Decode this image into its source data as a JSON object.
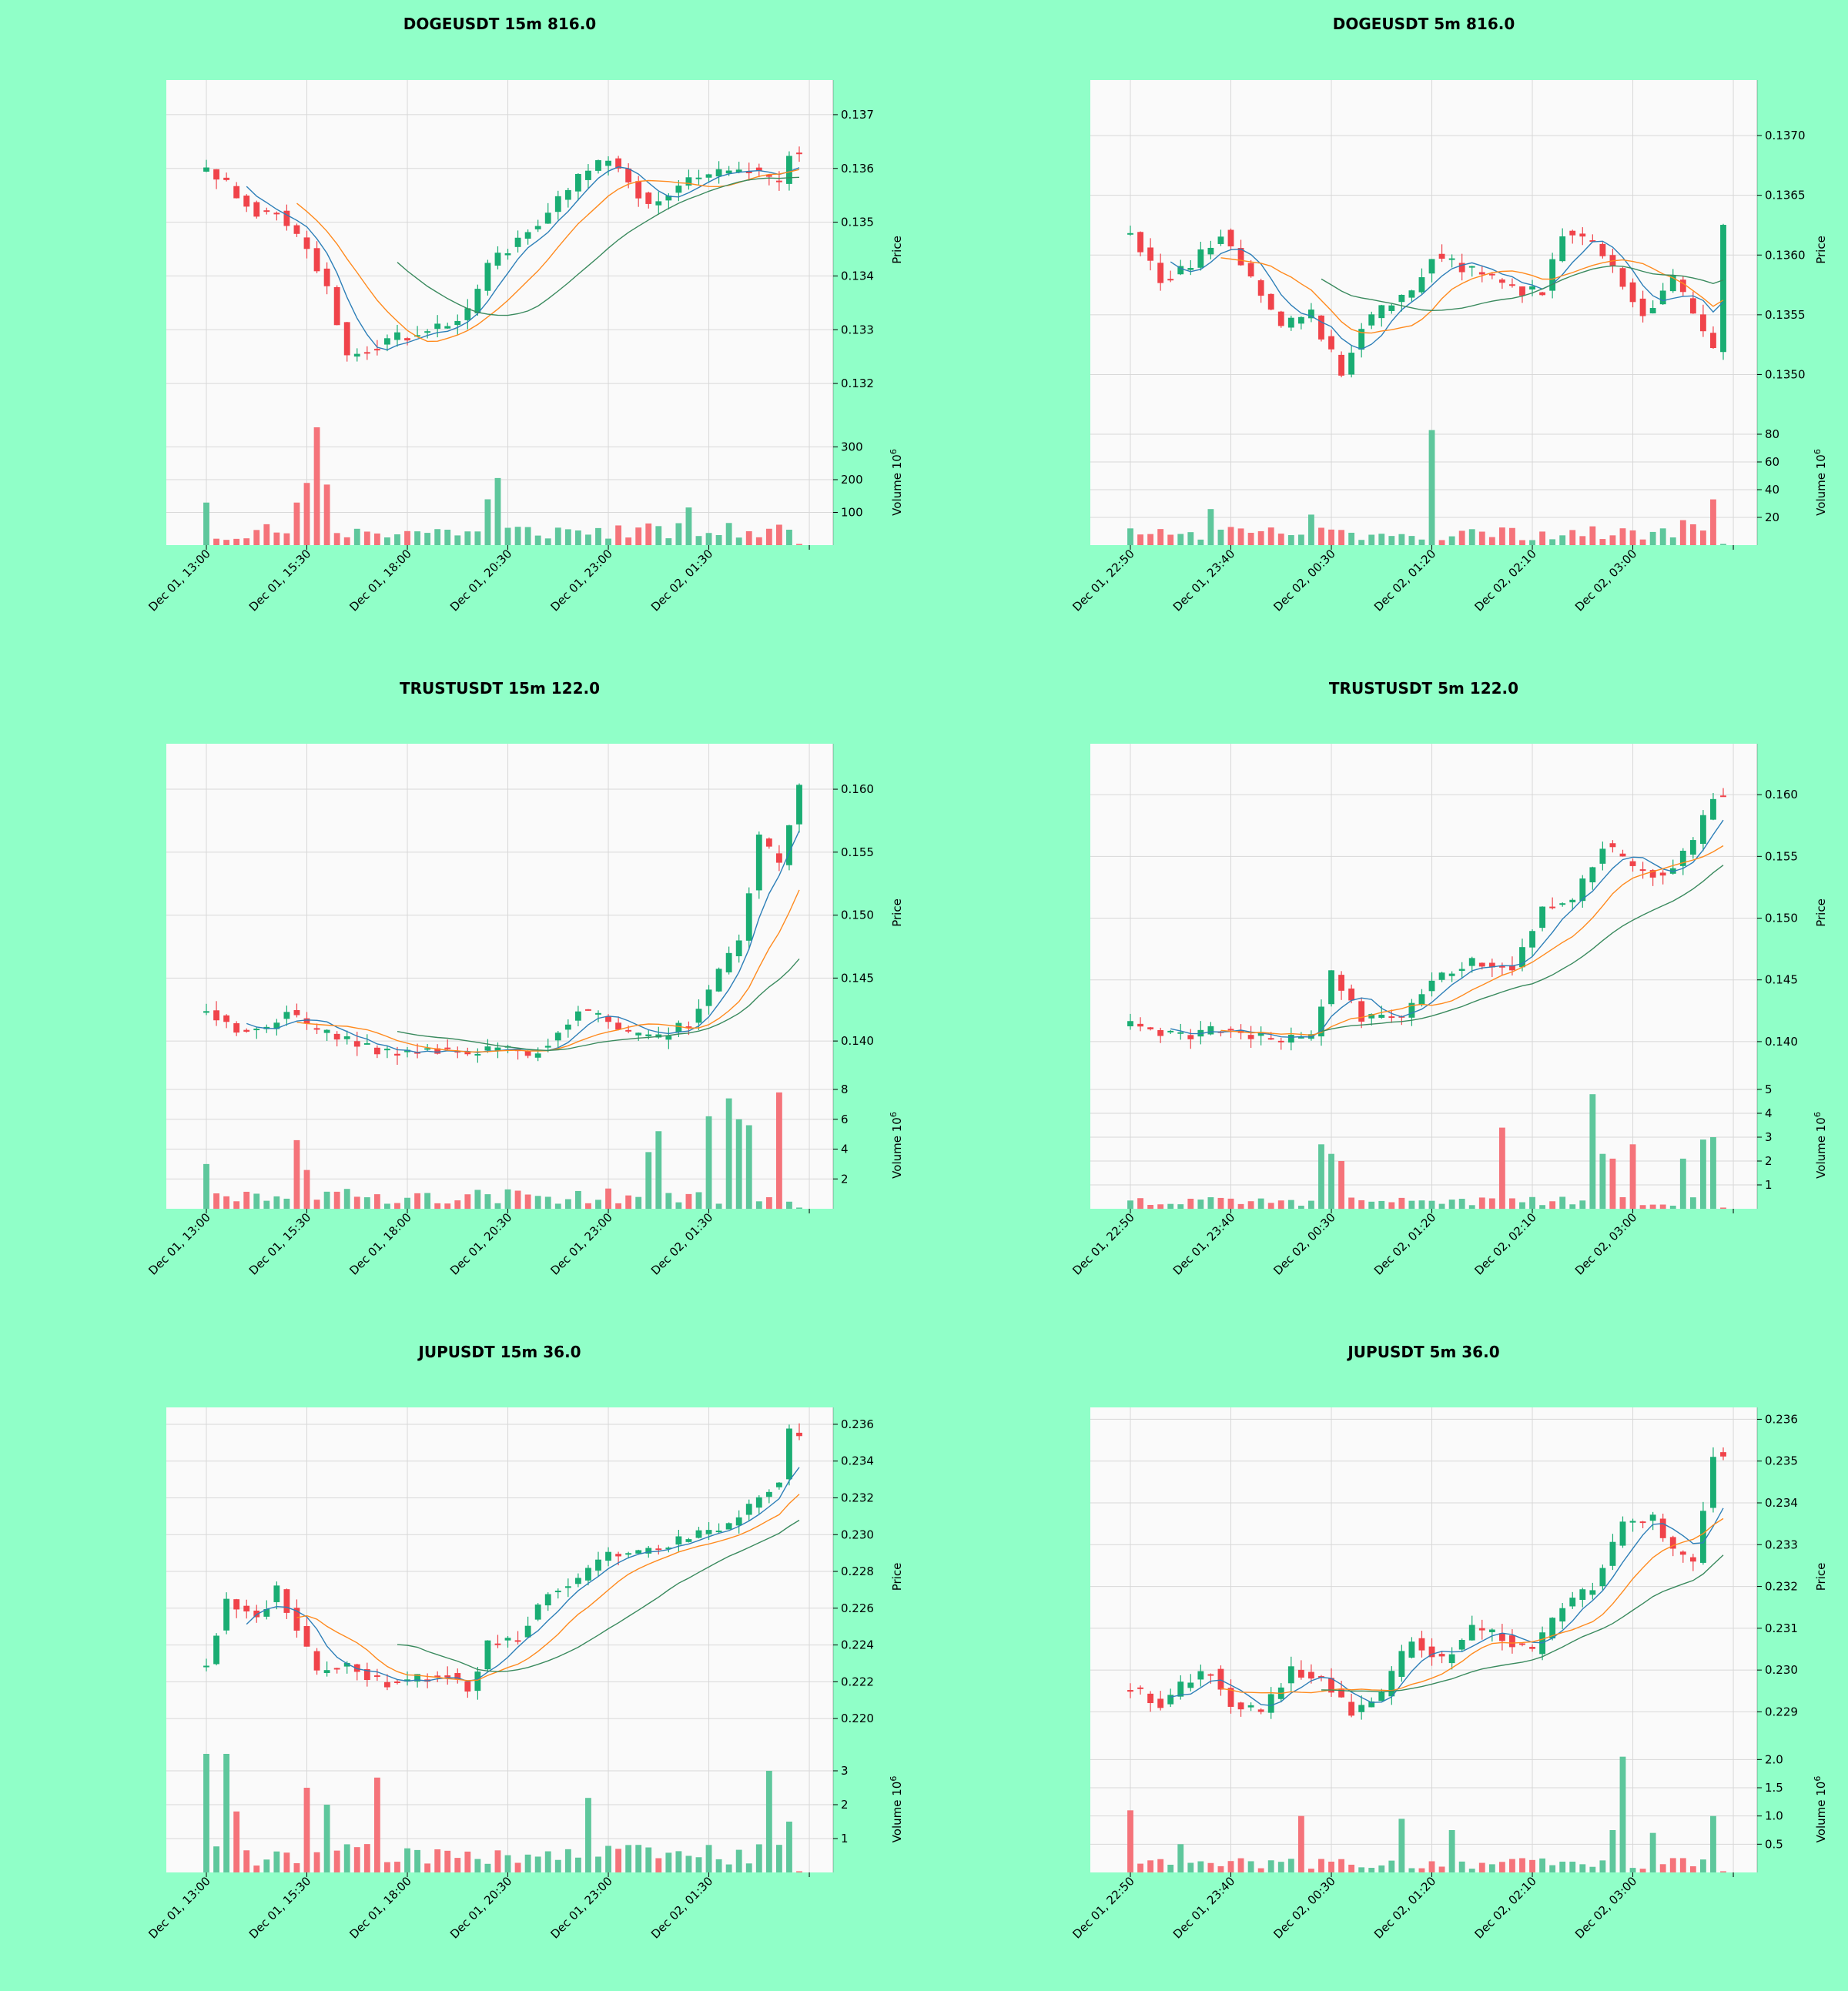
{
  "colors": {
    "background": "#90ffc8",
    "plot_bg": "#fafafa",
    "grid": "#d8d8d8",
    "up": "#1aad73",
    "down": "#f0434a",
    "ma_short": "#2d7fb8",
    "ma_mid": "#ff8a1e",
    "ma_long": "#3a8a5e",
    "volume_up": "#5ec79c",
    "volume_down": "#f5737a"
  },
  "chart_data": [
    {
      "type": "candlestick",
      "title": "DOGEUSDT 15m 816.0",
      "price_axis_label": "Price",
      "volume_axis_label": "Volume  10",
      "volume_exponent": "6",
      "x_tick_labels": [
        "Dec 01, 13:00",
        "Dec 01, 15:30",
        "Dec 01, 18:00",
        "Dec 01, 20:30",
        "Dec 01, 23:00",
        "Dec 02, 01:30"
      ],
      "price_ticks": [
        "0.132",
        "0.133",
        "0.134",
        "0.135",
        "0.136",
        "0.137"
      ],
      "volume_ticks": [
        "100",
        "200",
        "300"
      ],
      "price_range": [
        0.1315,
        0.1375
      ],
      "volume_range": [
        0,
        360
      ],
      "bars": 60,
      "anchors": [
        [
          0,
          0.136
        ],
        [
          5,
          0.1352
        ],
        [
          7,
          0.1352
        ],
        [
          10,
          0.1345
        ],
        [
          12,
          0.1338
        ],
        [
          14,
          0.1325
        ],
        [
          18,
          0.1328
        ],
        [
          20,
          0.1329
        ],
        [
          24,
          0.1331
        ],
        [
          26,
          0.1333
        ],
        [
          28,
          0.1342
        ],
        [
          33,
          0.135
        ],
        [
          37,
          0.1358
        ],
        [
          40,
          0.1362
        ],
        [
          44,
          0.1353
        ],
        [
          48,
          0.1358
        ],
        [
          54,
          0.136
        ],
        [
          57,
          0.1357
        ],
        [
          58,
          0.1363
        ],
        [
          59,
          0.1363
        ]
      ],
      "volume_base": 40,
      "volume_spikes": [
        [
          0,
          130
        ],
        [
          9,
          130
        ],
        [
          10,
          190
        ],
        [
          11,
          360
        ],
        [
          12,
          185
        ],
        [
          29,
          205
        ],
        [
          28,
          140
        ],
        [
          48,
          115
        ]
      ],
      "seed": 11
    },
    {
      "type": "candlestick",
      "title": "DOGEUSDT 5m 816.0",
      "price_axis_label": "Price",
      "volume_axis_label": "Volume  10",
      "volume_exponent": "6",
      "x_tick_labels": [
        "Dec 01, 22:50",
        "Dec 01, 23:40",
        "Dec 02, 00:30",
        "Dec 02, 01:20",
        "Dec 02, 02:10",
        "Dec 02, 03:00"
      ],
      "price_ticks": [
        "0.1350",
        "0.1355",
        "0.1360",
        "0.1365",
        "0.1370"
      ],
      "volume_ticks": [
        "20",
        "40",
        "60",
        "80"
      ],
      "price_range": [
        0.1347,
        0.1374
      ],
      "volume_range": [
        0,
        85
      ],
      "bars": 60,
      "anchors": [
        [
          0,
          0.1362
        ],
        [
          3,
          0.1358
        ],
        [
          6,
          0.1359
        ],
        [
          9,
          0.1362
        ],
        [
          12,
          0.1358
        ],
        [
          15,
          0.1354
        ],
        [
          18,
          0.1355
        ],
        [
          21,
          0.135
        ],
        [
          23,
          0.1354
        ],
        [
          26,
          0.1356
        ],
        [
          28,
          0.1357
        ],
        [
          30,
          0.136
        ],
        [
          33,
          0.1359
        ],
        [
          36,
          0.1358
        ],
        [
          39,
          0.1357
        ],
        [
          41,
          0.1357
        ],
        [
          43,
          0.1362
        ],
        [
          46,
          0.1361
        ],
        [
          48,
          0.1359
        ],
        [
          51,
          0.1355
        ],
        [
          54,
          0.1358
        ],
        [
          56,
          0.1355
        ],
        [
          58,
          0.1352
        ],
        [
          59,
          0.1363
        ]
      ],
      "volume_base": 8,
      "volume_spikes": [
        [
          8,
          26
        ],
        [
          18,
          22
        ],
        [
          30,
          83
        ],
        [
          55,
          18
        ],
        [
          58,
          33
        ],
        [
          56,
          15
        ]
      ],
      "seed": 23
    },
    {
      "type": "candlestick",
      "title": "TRUSTUSDT 15m 122.0",
      "price_axis_label": "Price",
      "volume_axis_label": "Volume  10",
      "volume_exponent": "6",
      "x_tick_labels": [
        "Dec 01, 13:00",
        "Dec 01, 15:30",
        "Dec 01, 18:00",
        "Dec 01, 20:30",
        "Dec 01, 23:00",
        "Dec 02, 01:30"
      ],
      "price_ticks": [
        "0.140",
        "0.145",
        "0.150",
        "0.155",
        "0.160"
      ],
      "volume_ticks": [
        "2",
        "4",
        "6",
        "8"
      ],
      "price_range": [
        0.1375,
        0.163
      ],
      "volume_range": [
        0,
        8
      ],
      "bars": 60,
      "anchors": [
        [
          0,
          0.1425
        ],
        [
          3,
          0.141
        ],
        [
          6,
          0.141
        ],
        [
          8,
          0.1425
        ],
        [
          10,
          0.141
        ],
        [
          14,
          0.14
        ],
        [
          18,
          0.139
        ],
        [
          22,
          0.1395
        ],
        [
          26,
          0.139
        ],
        [
          30,
          0.1395
        ],
        [
          32,
          0.1388
        ],
        [
          34,
          0.14
        ],
        [
          37,
          0.1425
        ],
        [
          40,
          0.1415
        ],
        [
          42,
          0.1405
        ],
        [
          45,
          0.1402
        ],
        [
          48,
          0.1415
        ],
        [
          50,
          0.144
        ],
        [
          53,
          0.148
        ],
        [
          55,
          0.156
        ],
        [
          57,
          0.154
        ],
        [
          59,
          0.1605
        ]
      ],
      "volume_base": 0.8,
      "volume_spikes": [
        [
          0,
          3.0
        ],
        [
          9,
          4.6
        ],
        [
          10,
          2.6
        ],
        [
          44,
          3.8
        ],
        [
          45,
          5.2
        ],
        [
          50,
          6.2
        ],
        [
          52,
          7.4
        ],
        [
          53,
          6.0
        ],
        [
          54,
          5.6
        ],
        [
          57,
          7.8
        ]
      ],
      "seed": 37
    },
    {
      "type": "candlestick",
      "title": "TRUSTUSDT 5m 122.0",
      "price_axis_label": "Price",
      "volume_axis_label": "Volume  10",
      "volume_exponent": "6",
      "x_tick_labels": [
        "Dec 01, 22:50",
        "Dec 01, 23:40",
        "Dec 02, 00:30",
        "Dec 02, 01:20",
        "Dec 02, 02:10",
        "Dec 02, 03:00"
      ],
      "price_ticks": [
        "0.140",
        "0.145",
        "0.150",
        "0.155",
        "0.160"
      ],
      "volume_ticks": [
        "1",
        "2",
        "3",
        "4",
        "5"
      ],
      "price_range": [
        0.1375,
        0.1635
      ],
      "volume_range": [
        0,
        5.0
      ],
      "bars": 60,
      "anchors": [
        [
          0,
          0.1415
        ],
        [
          3,
          0.1408
        ],
        [
          6,
          0.1405
        ],
        [
          9,
          0.141
        ],
        [
          12,
          0.1405
        ],
        [
          15,
          0.14
        ],
        [
          18,
          0.1405
        ],
        [
          20,
          0.1455
        ],
        [
          23,
          0.142
        ],
        [
          27,
          0.142
        ],
        [
          30,
          0.145
        ],
        [
          34,
          0.1465
        ],
        [
          38,
          0.146
        ],
        [
          41,
          0.151
        ],
        [
          44,
          0.1515
        ],
        [
          47,
          0.156
        ],
        [
          50,
          0.154
        ],
        [
          53,
          0.1535
        ],
        [
          56,
          0.156
        ],
        [
          58,
          0.16
        ],
        [
          59,
          0.16
        ]
      ],
      "volume_base": 0.3,
      "volume_spikes": [
        [
          19,
          2.7
        ],
        [
          20,
          2.3
        ],
        [
          21,
          2.0
        ],
        [
          37,
          3.4
        ],
        [
          46,
          4.8
        ],
        [
          47,
          2.3
        ],
        [
          48,
          2.1
        ],
        [
          50,
          2.7
        ],
        [
          55,
          2.1
        ],
        [
          57,
          2.9
        ],
        [
          58,
          3.0
        ]
      ],
      "seed": 53
    },
    {
      "type": "candlestick",
      "title": "JUPUSDT 15m 36.0",
      "price_axis_label": "Price",
      "volume_axis_label": "Volume  10",
      "volume_exponent": "6",
      "x_tick_labels": [
        "Dec 01, 13:00",
        "Dec 01, 15:30",
        "Dec 01, 18:00",
        "Dec 01, 20:30",
        "Dec 01, 23:00",
        "Dec 02, 01:30"
      ],
      "price_ticks": [
        "0.220",
        "0.222",
        "0.224",
        "0.226",
        "0.228",
        "0.230",
        "0.232",
        "0.234",
        "0.236"
      ],
      "volume_ticks": [
        "1",
        "2",
        "3"
      ],
      "price_range": [
        0.219,
        0.2365
      ],
      "volume_range": [
        0,
        3.5
      ],
      "bars": 60,
      "anchors": [
        [
          0,
          0.223
        ],
        [
          2,
          0.2265
        ],
        [
          5,
          0.2255
        ],
        [
          7,
          0.227
        ],
        [
          9,
          0.225
        ],
        [
          11,
          0.2225
        ],
        [
          14,
          0.223
        ],
        [
          17,
          0.222
        ],
        [
          20,
          0.222
        ],
        [
          24,
          0.2225
        ],
        [
          26,
          0.2215
        ],
        [
          28,
          0.224
        ],
        [
          31,
          0.2245
        ],
        [
          34,
          0.227
        ],
        [
          37,
          0.2275
        ],
        [
          40,
          0.229
        ],
        [
          43,
          0.229
        ],
        [
          46,
          0.2295
        ],
        [
          49,
          0.23
        ],
        [
          52,
          0.2305
        ],
        [
          55,
          0.232
        ],
        [
          57,
          0.233
        ],
        [
          58,
          0.2355
        ],
        [
          59,
          0.2355
        ]
      ],
      "volume_base": 0.5,
      "volume_spikes": [
        [
          0,
          3.5
        ],
        [
          2,
          3.5
        ],
        [
          3,
          1.8
        ],
        [
          10,
          2.5
        ],
        [
          12,
          2.0
        ],
        [
          17,
          2.8
        ],
        [
          38,
          2.2
        ],
        [
          56,
          3.0
        ],
        [
          58,
          1.5
        ]
      ],
      "seed": 71
    },
    {
      "type": "candlestick",
      "title": "JUPUSDT 5m 36.0",
      "price_axis_label": "Price",
      "volume_axis_label": "Volume  10",
      "volume_exponent": "6",
      "x_tick_labels": [
        "Dec 01, 22:50",
        "Dec 01, 23:40",
        "Dec 02, 00:30",
        "Dec 02, 01:20",
        "Dec 02, 02:10",
        "Dec 02, 03:00"
      ],
      "price_ticks": [
        "0.229",
        "0.230",
        "0.231",
        "0.232",
        "0.233",
        "0.234",
        "0.235",
        "0.236"
      ],
      "volume_ticks": [
        "0.5",
        "1.0",
        "1.5",
        "2.0"
      ],
      "price_range": [
        0.2284,
        0.2361
      ],
      "volume_range": [
        0,
        2.1
      ],
      "bars": 60,
      "anchors": [
        [
          0,
          0.2296
        ],
        [
          3,
          0.2292
        ],
        [
          6,
          0.2298
        ],
        [
          8,
          0.23
        ],
        [
          10,
          0.2292
        ],
        [
          13,
          0.229
        ],
        [
          16,
          0.23
        ],
        [
          19,
          0.2298
        ],
        [
          22,
          0.229
        ],
        [
          25,
          0.2294
        ],
        [
          28,
          0.2308
        ],
        [
          31,
          0.2302
        ],
        [
          34,
          0.231
        ],
        [
          37,
          0.2308
        ],
        [
          40,
          0.2304
        ],
        [
          43,
          0.2315
        ],
        [
          46,
          0.232
        ],
        [
          49,
          0.2335
        ],
        [
          52,
          0.2336
        ],
        [
          54,
          0.2328
        ],
        [
          56,
          0.2326
        ],
        [
          58,
          0.2352
        ],
        [
          59,
          0.2352
        ]
      ],
      "volume_base": 0.15,
      "volume_spikes": [
        [
          0,
          1.1
        ],
        [
          5,
          0.5
        ],
        [
          17,
          1.0
        ],
        [
          27,
          0.95
        ],
        [
          32,
          0.75
        ],
        [
          48,
          0.75
        ],
        [
          49,
          2.05
        ],
        [
          52,
          0.7
        ],
        [
          58,
          1.0
        ]
      ],
      "seed": 97
    }
  ]
}
